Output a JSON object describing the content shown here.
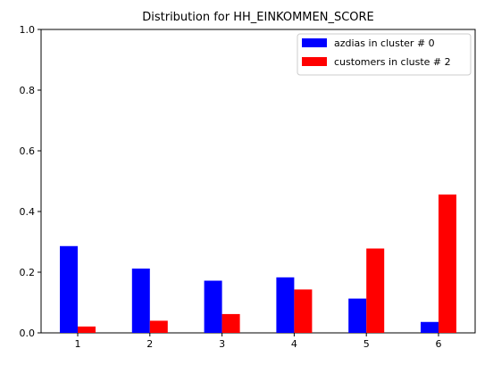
{
  "chart_data": {
    "type": "bar",
    "title": "Distribution for HH_EINKOMMEN_SCORE",
    "xlabel": "",
    "ylabel": "",
    "categories": [
      "1",
      "2",
      "3",
      "4",
      "5",
      "6"
    ],
    "series": [
      {
        "name": "azdias in cluster # 0",
        "color": "#0000ff",
        "values": [
          0.286,
          0.212,
          0.172,
          0.183,
          0.113,
          0.036
        ]
      },
      {
        "name": "customers in cluste # 2",
        "color": "#ff0000",
        "values": [
          0.021,
          0.04,
          0.062,
          0.143,
          0.278,
          0.456
        ]
      }
    ],
    "ylim": [
      0.0,
      1.0
    ],
    "yticks": [
      "0.0",
      "0.2",
      "0.4",
      "0.6",
      "0.8",
      "1.0"
    ],
    "grid": false,
    "legend_position": "top-right"
  }
}
